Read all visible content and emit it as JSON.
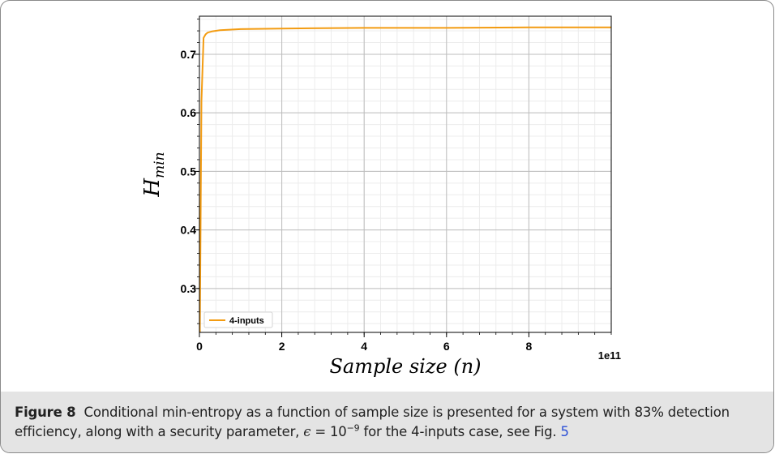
{
  "chart_data": {
    "type": "line",
    "title": "",
    "xlabel": "Sample size (n)",
    "ylabel_base": "H",
    "ylabel_sub": "min",
    "x_offset_text": "1e11",
    "x_scale": 100000000000,
    "xlim": [
      0,
      1000000000000
    ],
    "ylim": [
      0.225,
      0.765
    ],
    "x_ticks": [
      0,
      200000000000,
      400000000000,
      600000000000,
      800000000000
    ],
    "x_tick_labels": [
      "0",
      "2",
      "4",
      "6",
      "8"
    ],
    "y_ticks": [
      0.3,
      0.4,
      0.5,
      0.6,
      0.7
    ],
    "y_tick_labels": [
      "0.3",
      "0.4",
      "0.5",
      "0.6",
      "0.7"
    ],
    "grid": true,
    "legend_position": "lower-left",
    "series": [
      {
        "name": "4-inputs",
        "color": "#f39c12",
        "x": [
          1000000000,
          5000000000,
          10000000000,
          15000000000,
          20000000000,
          30000000000,
          50000000000,
          100000000000,
          200000000000,
          400000000000,
          600000000000,
          800000000000,
          1000000000000
        ],
        "y": [
          0.22,
          0.62,
          0.728,
          0.734,
          0.737,
          0.739,
          0.741,
          0.743,
          0.744,
          0.745,
          0.745,
          0.746,
          0.746
        ]
      }
    ]
  },
  "caption": {
    "label": "Figure 8",
    "text_part1": "Conditional min-entropy as a function of sample size is presented for a system with 83% detection efficiency, along with a security parameter,",
    "eps_symbol": "ϵ",
    "eq_text": "= 10",
    "exponent": "−9",
    "text_part2": "for the 4-inputs case, see Fig.",
    "fig_ref": "5"
  }
}
